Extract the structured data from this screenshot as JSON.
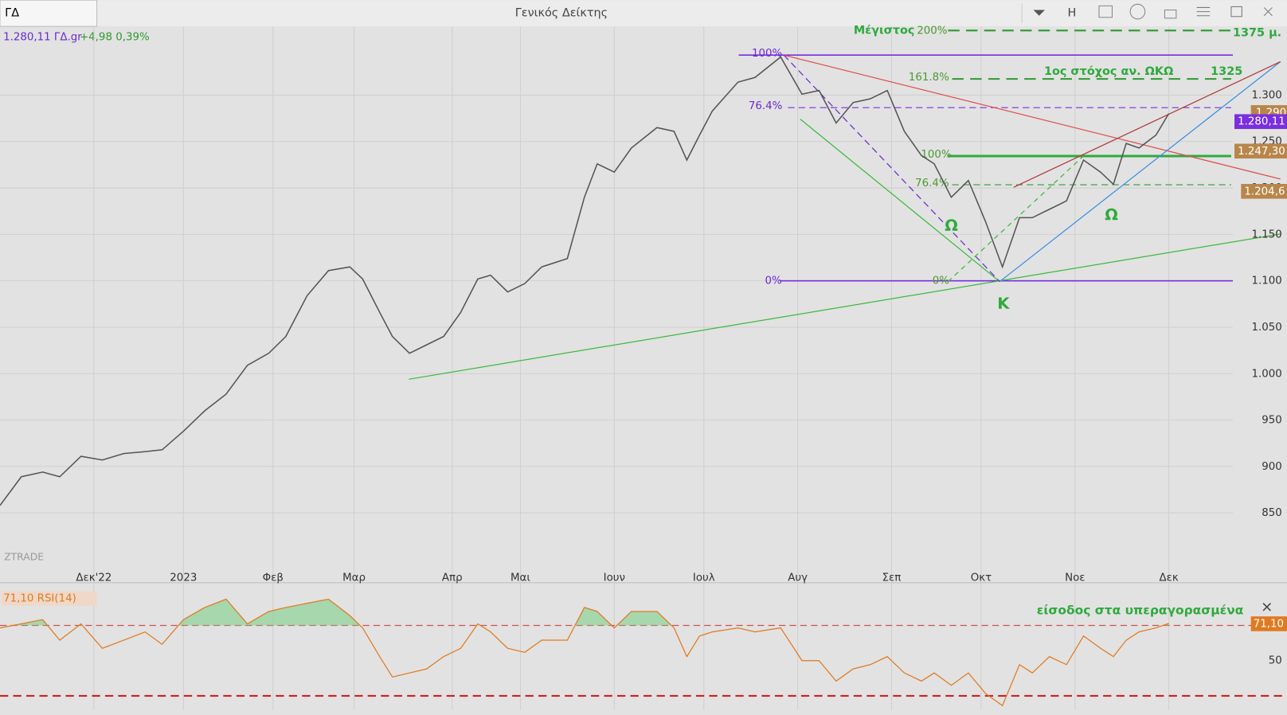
{
  "ui": {
    "tab": "ΓΔ",
    "window_title": "Γενικός Δείκτης",
    "button": "H",
    "quote_name": "1.280,11 ΓΔ.gr",
    "quote_change": "+4,98 0,39%"
  },
  "chart_data": [
    {
      "type": "line",
      "color": "#555555",
      "x": [
        0,
        5,
        10,
        14,
        19,
        24,
        29,
        34,
        38,
        43,
        48,
        53,
        58,
        63,
        67,
        72,
        77,
        82,
        85,
        89,
        92,
        96,
        100,
        104,
        108,
        112,
        115,
        119,
        123,
        127,
        133,
        137,
        140,
        144,
        148,
        154,
        158,
        161,
        164,
        167,
        173,
        177,
        183,
        188,
        192,
        196,
        200,
        204,
        208,
        212,
        216,
        219,
        223,
        227,
        231,
        235,
        239,
        242,
        246,
        250,
        254,
        258,
        261,
        264,
        267,
        271,
        274
      ],
      "values": [
        858,
        889,
        894,
        889,
        911,
        907,
        914,
        916,
        918,
        938,
        960,
        978,
        1009,
        1022,
        1040,
        1084,
        1111,
        1115,
        1102,
        1066,
        1040,
        1022,
        1031,
        1040,
        1066,
        1102,
        1106,
        1088,
        1097,
        1115,
        1124,
        1190,
        1226,
        1217,
        1243,
        1265,
        1261,
        1230,
        1257,
        1283,
        1314,
        1319,
        1341,
        1301,
        1305,
        1270,
        1292,
        1296,
        1305,
        1261,
        1235,
        1226,
        1190,
        1208,
        1164,
        1115,
        1168,
        1168,
        1177,
        1186,
        1230,
        1217,
        1204,
        1248,
        1243,
        1257,
        1280.11
      ],
      "xlim": [
        0,
        289
      ],
      "ylim": [
        796,
        1374
      ],
      "xticks": [
        {
          "value": 22,
          "label": "Δεκ'22"
        },
        {
          "value": 43,
          "label": "2023"
        },
        {
          "value": 64,
          "label": "Φεβ"
        },
        {
          "value": 83,
          "label": "Μαρ"
        },
        {
          "value": 106,
          "label": "Απρ"
        },
        {
          "value": 122,
          "label": "Μαι"
        },
        {
          "value": 144,
          "label": "Ιουν"
        },
        {
          "value": 165,
          "label": "Ιουλ"
        },
        {
          "value": 187,
          "label": "Αυγ"
        },
        {
          "value": 209,
          "label": "Σεπ"
        },
        {
          "value": 230,
          "label": "Οκτ"
        },
        {
          "value": 252,
          "label": "Νοε"
        },
        {
          "value": 274,
          "label": "Δεκ"
        }
      ],
      "yticks": [
        {
          "value": 850,
          "label": "850"
        },
        {
          "value": 900,
          "label": "900"
        },
        {
          "value": 950,
          "label": "950"
        },
        {
          "value": 1000,
          "label": "1.000"
        },
        {
          "value": 1050,
          "label": "1.050"
        },
        {
          "value": 1100,
          "label": "1.100"
        },
        {
          "value": 1150,
          "label": "1.150"
        },
        {
          "value": 1200,
          "label": "1.200"
        },
        {
          "value": 1250,
          "label": "1.250"
        },
        {
          "value": 1300,
          "label": "1.300"
        }
      ],
      "grid": true,
      "annotations": [
        "Μέγιστος",
        "200%",
        "1375 μ.",
        "161.8%",
        "1ος στόχος αν. ΩΚΩ",
        "1325",
        "100%",
        "76.4%",
        "0%",
        "100%",
        "76.4%",
        "0%",
        "Ω",
        "Ω",
        "Κ",
        "ZTRADE",
        "1.290",
        "1.280,11",
        "1.247,30",
        "1.204,6"
      ]
    },
    {
      "type": "line",
      "color": "#e07a20",
      "title": "71,10 RSI(14)",
      "x": [
        0,
        5,
        10,
        14,
        19,
        24,
        29,
        34,
        38,
        43,
        48,
        53,
        58,
        63,
        67,
        72,
        77,
        82,
        85,
        89,
        92,
        96,
        100,
        104,
        108,
        112,
        115,
        119,
        123,
        127,
        133,
        137,
        140,
        144,
        148,
        154,
        158,
        161,
        164,
        167,
        173,
        177,
        183,
        188,
        192,
        196,
        200,
        204,
        208,
        212,
        216,
        219,
        223,
        227,
        231,
        235,
        239,
        242,
        246,
        250,
        254,
        258,
        261,
        264,
        267,
        271,
        274
      ],
      "values": [
        68.6,
        70.9,
        73.3,
        61.6,
        70.9,
        57,
        61.6,
        66.3,
        59.3,
        73.3,
        80.2,
        84.9,
        70.9,
        77.9,
        80.2,
        82.6,
        84.9,
        75.6,
        68.6,
        52.3,
        40.7,
        43,
        45.3,
        52.3,
        57,
        70.9,
        66.3,
        57,
        54.7,
        61.6,
        61.6,
        80.2,
        77.9,
        68.6,
        77.9,
        77.9,
        68.6,
        52.3,
        64,
        66.3,
        68.6,
        66.3,
        68.6,
        50,
        50,
        38.4,
        45.3,
        47.7,
        52.3,
        43,
        38.4,
        43,
        36,
        43,
        31.4,
        24.4,
        47.7,
        43,
        52.3,
        47.7,
        64,
        57,
        52.3,
        61.6,
        66.3,
        68.6,
        71.1
      ],
      "xlim": [
        0,
        289
      ],
      "ylim": [
        22,
        90.5
      ],
      "yticks": [
        50
      ],
      "levels": [
        70,
        30
      ],
      "annotations": [
        "71,10",
        "είσοδος στα υπεραγορασμένα"
      ]
    }
  ]
}
